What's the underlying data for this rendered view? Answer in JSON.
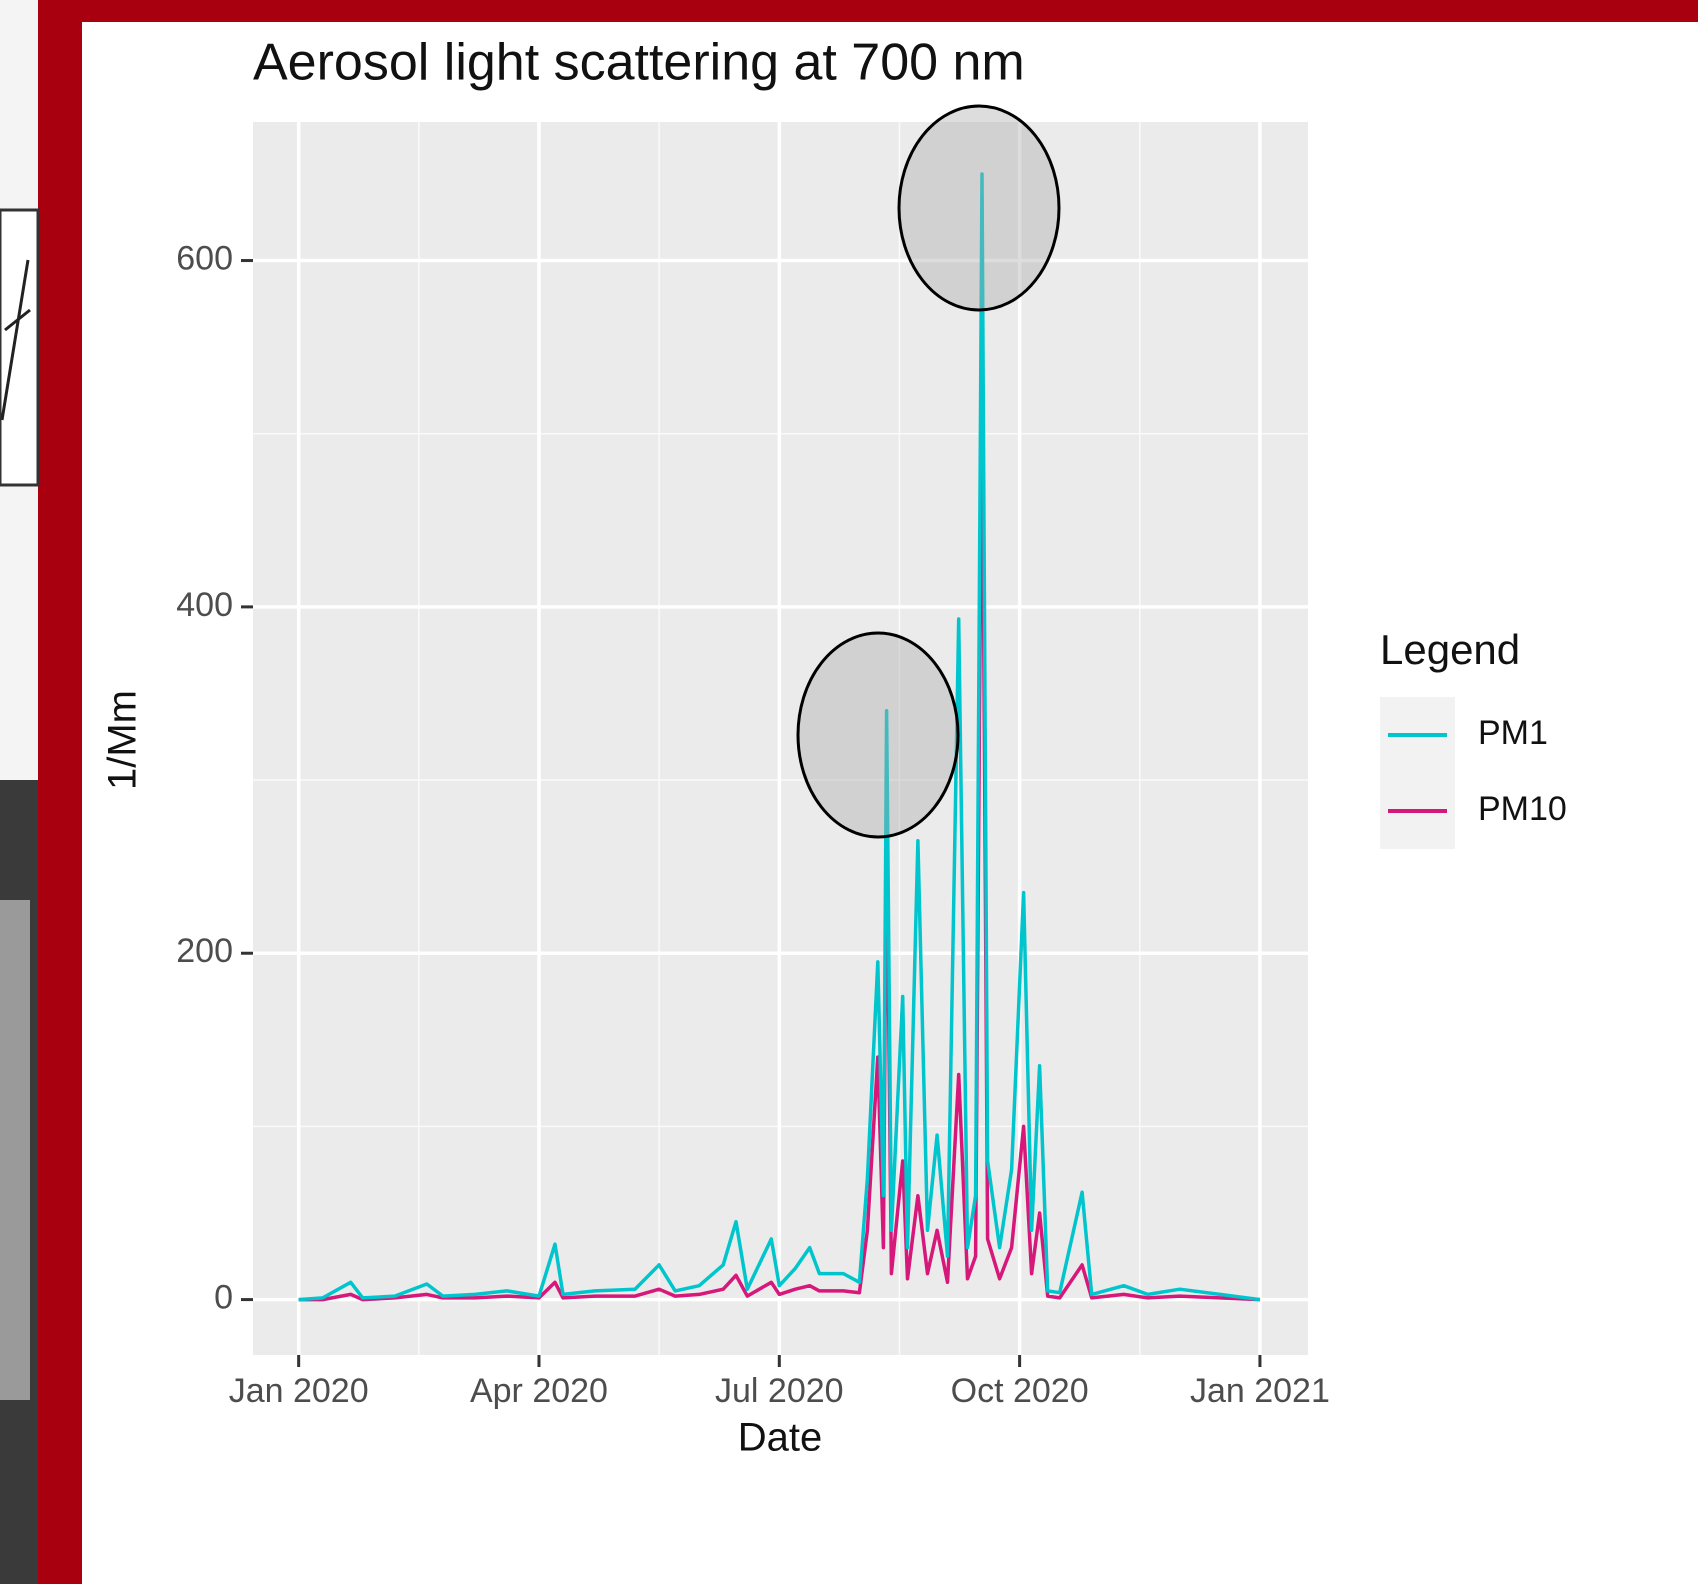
{
  "chart_data": {
    "type": "line",
    "title": "Aerosol light scattering at 700 nm",
    "x_label": "Date",
    "y_label": "1/Mm",
    "legend_title": "Legend",
    "legend_position": "right",
    "grid": true,
    "x": [
      0,
      0.3,
      0.65,
      0.8,
      1.2,
      1.6,
      1.8,
      2.2,
      2.6,
      3.0,
      3.2,
      3.3,
      3.7,
      4.2,
      4.5,
      4.7,
      5.0,
      5.3,
      5.46,
      5.6,
      5.9,
      6.0,
      6.2,
      6.38,
      6.5,
      6.8,
      7.0,
      7.1,
      7.23,
      7.3,
      7.34,
      7.4,
      7.54,
      7.6,
      7.73,
      7.85,
      7.97,
      8.1,
      8.24,
      8.35,
      8.45,
      8.53,
      8.6,
      8.75,
      8.9,
      9.05,
      9.15,
      9.25,
      9.35,
      9.5,
      9.78,
      9.9,
      10.3,
      10.6,
      11.0,
      11.5,
      12.0
    ],
    "series": [
      {
        "name": "PM1",
        "color": "#00c5cd",
        "values": [
          0,
          1,
          10,
          1,
          2,
          9,
          2,
          3,
          5,
          2,
          32,
          3,
          5,
          6,
          20,
          5,
          8,
          20,
          45,
          6,
          35,
          8,
          18,
          30,
          15,
          15,
          10,
          70,
          195,
          60,
          340,
          40,
          175,
          30,
          265,
          40,
          95,
          25,
          393,
          30,
          60,
          650,
          80,
          30,
          75,
          235,
          40,
          135,
          5,
          4,
          62,
          3,
          8,
          3,
          6,
          3,
          0
        ]
      },
      {
        "name": "PM10",
        "color": "#d6187a",
        "values": [
          0,
          0,
          3,
          0,
          1,
          3,
          1,
          1,
          2,
          1,
          10,
          1,
          2,
          2,
          6,
          2,
          3,
          6,
          14,
          2,
          10,
          3,
          6,
          8,
          5,
          5,
          4,
          40,
          140,
          30,
          280,
          15,
          80,
          12,
          60,
          15,
          40,
          10,
          130,
          12,
          25,
          540,
          35,
          12,
          30,
          100,
          15,
          50,
          2,
          1,
          20,
          1,
          3,
          1,
          2,
          1,
          0
        ]
      }
    ],
    "xlim": [
      -0.57,
      12.6
    ],
    "xticks": [
      {
        "value": 0,
        "label": "Jan 2020"
      },
      {
        "value": 3,
        "label": "Apr 2020"
      },
      {
        "value": 6,
        "label": "Jul 2020"
      },
      {
        "value": 9,
        "label": "Oct 2020"
      },
      {
        "value": 12,
        "label": "Jan 2021"
      }
    ],
    "ylim": [
      -32,
      680
    ],
    "yticks": [
      0,
      200,
      400,
      600
    ]
  }
}
